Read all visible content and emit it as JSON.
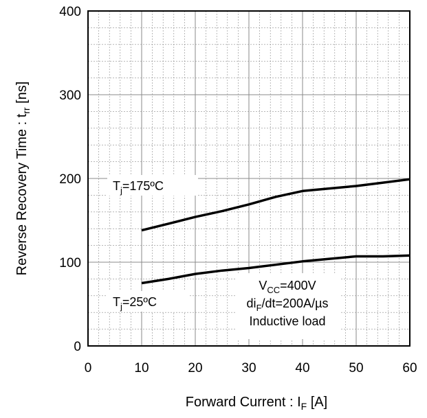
{
  "chart_data": {
    "type": "line",
    "xlabel": {
      "main": "Forward Current  : I",
      "sub": "F",
      "unit": " [A]"
    },
    "ylabel": {
      "main": "Reverse Recovery Time  : t",
      "sub": "rr",
      "unit": " [ns]"
    },
    "xlim": [
      0,
      60
    ],
    "ylim": [
      0,
      400
    ],
    "x_ticks": [
      "0",
      "10",
      "20",
      "30",
      "40",
      "50",
      "60"
    ],
    "y_ticks": [
      "0",
      "100",
      "200",
      "300",
      "400"
    ],
    "grid": true,
    "series": [
      {
        "label": {
          "main": "T",
          "sub": "j",
          "rest": "=175ºC"
        },
        "points": [
          [
            10,
            138
          ],
          [
            15,
            146
          ],
          [
            20,
            154
          ],
          [
            25,
            161
          ],
          [
            30,
            169
          ],
          [
            35,
            178
          ],
          [
            40,
            185
          ],
          [
            45,
            188
          ],
          [
            50,
            191
          ],
          [
            55,
            195
          ],
          [
            60,
            199
          ]
        ]
      },
      {
        "label": {
          "main": "T",
          "sub": "j",
          "rest": "=25ºC"
        },
        "points": [
          [
            10,
            75
          ],
          [
            15,
            80
          ],
          [
            20,
            86
          ],
          [
            25,
            90
          ],
          [
            30,
            93
          ],
          [
            35,
            97
          ],
          [
            40,
            101
          ],
          [
            45,
            104
          ],
          [
            50,
            107
          ],
          [
            55,
            107
          ],
          [
            60,
            108
          ]
        ]
      }
    ],
    "conditions": [
      {
        "main": "V",
        "sub": "CC",
        "rest": "=400V"
      },
      {
        "main": "di",
        "sub": "F",
        "rest": "/dt=200A/µs"
      },
      {
        "main": "Inductive load",
        "sub": "",
        "rest": ""
      }
    ],
    "colors": {
      "line": "#000000",
      "grid": "#8a8a8a",
      "frame": "#000000"
    }
  }
}
